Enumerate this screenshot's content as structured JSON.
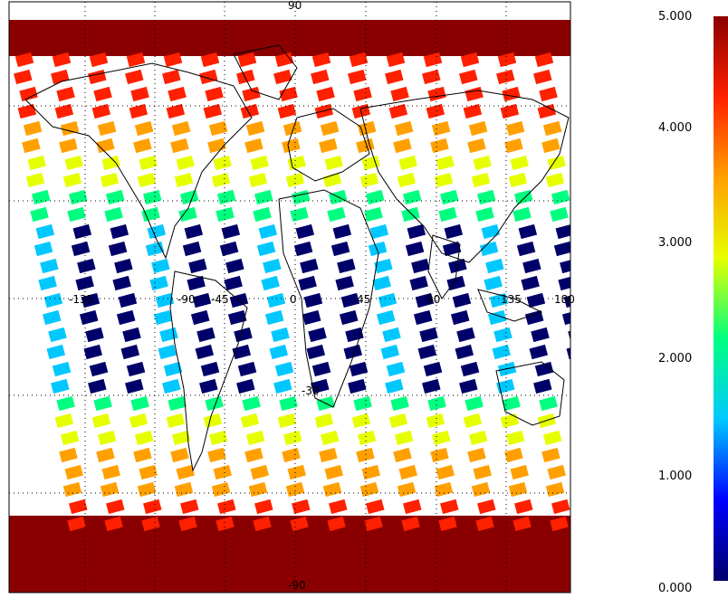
{
  "map": {
    "lat_labels": {
      "top": "90",
      "equator": "0",
      "bottom": "-90",
      "south_mid": "-30"
    },
    "lon_labels": [
      "-135",
      "-90",
      "-45",
      "0",
      "45",
      "90",
      "135",
      "180"
    ],
    "projection": "equirectangular",
    "content": "global swath coverage map with coastlines and country borders"
  },
  "colorbar": {
    "ticks": [
      "0.000",
      "1.000",
      "2.000",
      "3.000",
      "4.000",
      "5.000"
    ],
    "min": 0,
    "max": 5,
    "colors": [
      "#00006a",
      "#0000ff",
      "#00c8ff",
      "#00ff80",
      "#e6ff00",
      "#ffa000",
      "#ff2000",
      "#8a0000"
    ]
  }
}
